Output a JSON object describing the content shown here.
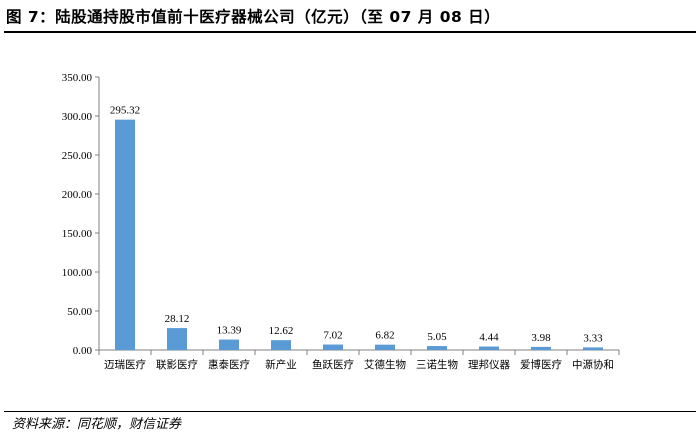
{
  "title": "图 7：陆股通持股市值前十医疗器械公司（亿元）（至 07 月 08 日）",
  "source": "资料来源：同花顺，财信证券",
  "chart_data": {
    "type": "bar",
    "categories": [
      "迈瑞医疗",
      "联影医疗",
      "惠泰医疗",
      "新产业",
      "鱼跃医疗",
      "艾德生物",
      "三诺生物",
      "理邦仪器",
      "爱博医疗",
      "中源协和"
    ],
    "values": [
      295.32,
      28.12,
      13.39,
      12.62,
      7.02,
      6.82,
      5.05,
      4.44,
      3.98,
      3.33
    ],
    "value_labels": [
      "295.32",
      "28.12",
      "13.39",
      "12.62",
      "7.02",
      "6.82",
      "5.05",
      "4.44",
      "3.98",
      "3.33"
    ],
    "yticks": [
      "0.00",
      "50.00",
      "100.00",
      "150.00",
      "200.00",
      "250.00",
      "300.00",
      "350.00"
    ],
    "ylim": [
      0,
      350
    ],
    "bar_color": "#5B9BD5",
    "grid": false,
    "legend": "none"
  }
}
